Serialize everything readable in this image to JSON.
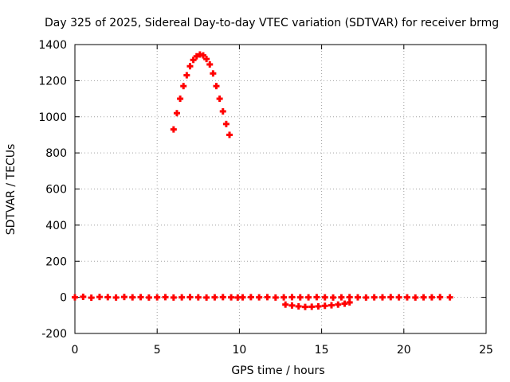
{
  "chart_data": {
    "type": "scatter",
    "title": "Day 325 of 2025, Sidereal Day-to-day VTEC variation (SDTVAR) for receiver brmg",
    "xlabel": "GPS time / hours",
    "ylabel": "SDTVAR / TECUs",
    "xlim": [
      0,
      25
    ],
    "ylim": [
      -200,
      1400
    ],
    "xticks": [
      "0",
      "5",
      "10",
      "15",
      "20",
      "25"
    ],
    "yticks": [
      "-200",
      "0",
      "200",
      "400",
      "600",
      "800",
      "1000",
      "1200",
      "1400"
    ],
    "grid": true,
    "marker_color": "#ff0000",
    "series": [
      {
        "points": [
          [
            6.0,
            930
          ],
          [
            6.2,
            1020
          ],
          [
            6.4,
            1100
          ],
          [
            6.6,
            1170
          ],
          [
            6.8,
            1230
          ],
          [
            7.0,
            1280
          ],
          [
            7.2,
            1315
          ],
          [
            7.4,
            1335
          ],
          [
            7.6,
            1345
          ],
          [
            7.8,
            1340
          ],
          [
            8.0,
            1320
          ],
          [
            8.2,
            1290
          ],
          [
            8.4,
            1240
          ],
          [
            8.6,
            1170
          ],
          [
            8.8,
            1100
          ],
          [
            9.0,
            1030
          ],
          [
            9.2,
            960
          ],
          [
            9.4,
            900
          ],
          [
            0.0,
            0
          ],
          [
            0.5,
            3
          ],
          [
            1.0,
            -2
          ],
          [
            1.5,
            2
          ],
          [
            2.0,
            1
          ],
          [
            2.5,
            -1
          ],
          [
            3.0,
            2
          ],
          [
            3.5,
            0
          ],
          [
            4.0,
            1
          ],
          [
            4.5,
            -1
          ],
          [
            5.0,
            0
          ],
          [
            5.5,
            1
          ],
          [
            6.0,
            -1
          ],
          [
            6.5,
            0
          ],
          [
            7.0,
            1
          ],
          [
            7.5,
            0
          ],
          [
            8.0,
            -1
          ],
          [
            8.5,
            0
          ],
          [
            9.0,
            1
          ],
          [
            9.5,
            0
          ],
          [
            9.9,
            -1
          ],
          [
            10.2,
            0
          ],
          [
            10.7,
            1
          ],
          [
            11.2,
            0
          ],
          [
            11.7,
            1
          ],
          [
            12.2,
            -1
          ],
          [
            12.7,
            0
          ],
          [
            13.2,
            1
          ],
          [
            13.7,
            0
          ],
          [
            14.2,
            0
          ],
          [
            14.7,
            1
          ],
          [
            15.2,
            0
          ],
          [
            15.7,
            -1
          ],
          [
            16.2,
            0
          ],
          [
            16.7,
            1
          ],
          [
            17.2,
            0
          ],
          [
            17.7,
            -1
          ],
          [
            18.2,
            0
          ],
          [
            18.7,
            0
          ],
          [
            19.2,
            1
          ],
          [
            19.7,
            0
          ],
          [
            20.2,
            0
          ],
          [
            20.7,
            -1
          ],
          [
            21.2,
            0
          ],
          [
            21.7,
            0
          ],
          [
            22.2,
            1
          ],
          [
            22.8,
            0
          ],
          [
            12.8,
            -40
          ],
          [
            13.2,
            -45
          ],
          [
            13.6,
            -50
          ],
          [
            14.0,
            -53
          ],
          [
            14.4,
            -52
          ],
          [
            14.8,
            -50
          ],
          [
            15.2,
            -47
          ],
          [
            15.6,
            -44
          ],
          [
            16.0,
            -40
          ],
          [
            16.4,
            -35
          ],
          [
            16.7,
            -28
          ]
        ]
      }
    ]
  }
}
